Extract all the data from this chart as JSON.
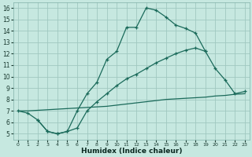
{
  "xlabel": "Humidex (Indice chaleur)",
  "bg_color": "#c6e8e0",
  "grid_color": "#a0c8c0",
  "line_color": "#1a6a5a",
  "line_A_x": [
    0,
    1,
    2,
    3,
    4,
    5,
    6,
    7,
    8,
    9,
    10,
    11,
    12,
    13,
    14,
    15,
    16,
    17,
    18,
    19
  ],
  "line_A_y": [
    7.0,
    6.8,
    6.2,
    5.2,
    5.0,
    5.2,
    7.0,
    8.5,
    9.5,
    11.5,
    12.2,
    14.3,
    14.3,
    16.0,
    15.8,
    15.2,
    14.5,
    14.2,
    13.8,
    12.2
  ],
  "line_B_x": [
    0,
    1,
    2,
    3,
    4,
    5,
    6,
    7,
    8,
    9,
    10,
    11,
    12,
    13,
    14,
    15,
    16,
    17,
    18,
    19,
    20,
    21,
    22,
    23
  ],
  "line_B_y": [
    7.0,
    7.0,
    7.05,
    7.1,
    7.15,
    7.2,
    7.25,
    7.3,
    7.35,
    7.4,
    7.5,
    7.6,
    7.7,
    7.8,
    7.9,
    8.0,
    8.05,
    8.1,
    8.15,
    8.2,
    8.3,
    8.35,
    8.45,
    8.5
  ],
  "line_C_x": [
    2,
    3,
    4,
    5,
    6,
    7,
    8,
    9,
    10,
    11,
    12,
    13,
    14,
    15,
    16,
    17,
    18,
    19,
    20,
    21,
    22,
    23
  ],
  "line_C_y": [
    6.2,
    5.2,
    5.0,
    5.2,
    5.5,
    7.0,
    7.8,
    8.5,
    9.2,
    9.8,
    10.2,
    10.7,
    11.2,
    11.6,
    12.0,
    12.3,
    12.5,
    12.2,
    10.7,
    9.7,
    8.5,
    8.7
  ],
  "xlim": [
    -0.5,
    23.5
  ],
  "ylim": [
    4.5,
    16.5
  ],
  "yticks": [
    5,
    6,
    7,
    8,
    9,
    10,
    11,
    12,
    13,
    14,
    15,
    16
  ],
  "xticks": [
    0,
    1,
    2,
    3,
    4,
    5,
    6,
    7,
    8,
    9,
    10,
    11,
    12,
    13,
    14,
    15,
    16,
    17,
    18,
    19,
    20,
    21,
    22,
    23
  ]
}
